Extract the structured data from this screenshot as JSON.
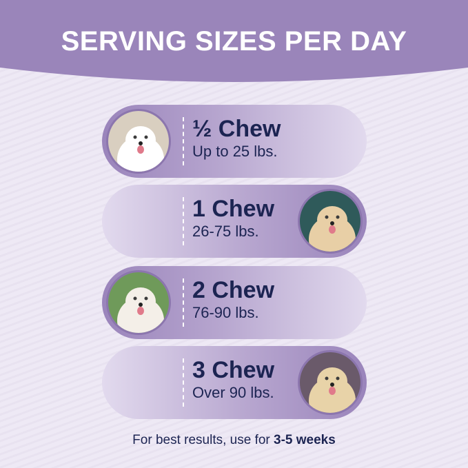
{
  "title": "SERVING SIZES PER DAY",
  "rows": [
    {
      "amount": "½ Chew",
      "weight": "Up to 25 lbs.",
      "photo": "white-fluffy-dog",
      "side": "left"
    },
    {
      "amount": "1 Chew",
      "weight": "26-75 lbs.",
      "photo": "goldendoodle",
      "side": "right"
    },
    {
      "amount": "2 Chew",
      "weight": "76-90 lbs.",
      "photo": "white-husky",
      "side": "left"
    },
    {
      "amount": "3 Chew",
      "weight": "Over 90 lbs.",
      "photo": "labrador",
      "side": "right"
    }
  ],
  "footer": {
    "prefix": "For best results, use for ",
    "emphasis": "3-5 weeks"
  },
  "colors": {
    "header": "#9a85ba",
    "text": "#1c2452",
    "background": "#ece7f3"
  }
}
